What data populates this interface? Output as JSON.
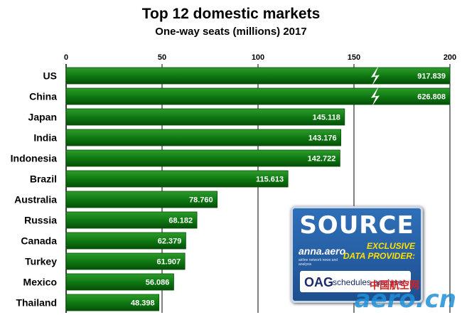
{
  "chart_data": {
    "type": "bar",
    "orientation": "horizontal",
    "title": "Top 12 domestic markets",
    "subtitle": "One-way seats (millions) 2017",
    "categories": [
      "US",
      "China",
      "Japan",
      "India",
      "Indonesia",
      "Brazil",
      "Australia",
      "Russia",
      "Canada",
      "Turkey",
      "Mexico",
      "Thailand"
    ],
    "values": [
      917.839,
      626.808,
      145.118,
      143.176,
      142.722,
      115.613,
      78.76,
      68.182,
      62.379,
      61.907,
      56.086,
      48.398
    ],
    "value_labels": [
      "917.839",
      "626.808",
      "145.118",
      "143.176",
      "142.722",
      "115.613",
      "78.760",
      "68.182",
      "62.379",
      "61.907",
      "56.086",
      "48.398"
    ],
    "xlim": [
      0,
      200
    ],
    "xticks": [
      "0",
      "50",
      "100",
      "150",
      "200"
    ],
    "axis_position": "top",
    "truncated_bars": [
      "US",
      "China"
    ],
    "grid": true,
    "bar_color": "#0f7a12",
    "bar_color_dark": "#064f08"
  },
  "badge": {
    "title": "SOURCE",
    "logo": "anna.aero",
    "tagline": "airline network news and analysis",
    "exclusive_line1": "EXCLUSIVE",
    "exclusive_line2": "DATA PROVIDER:",
    "oag": "OAG",
    "oag_sub": "schedules analyser"
  },
  "watermark": {
    "text": "aero.cn",
    "chinese": "中国航空网"
  }
}
